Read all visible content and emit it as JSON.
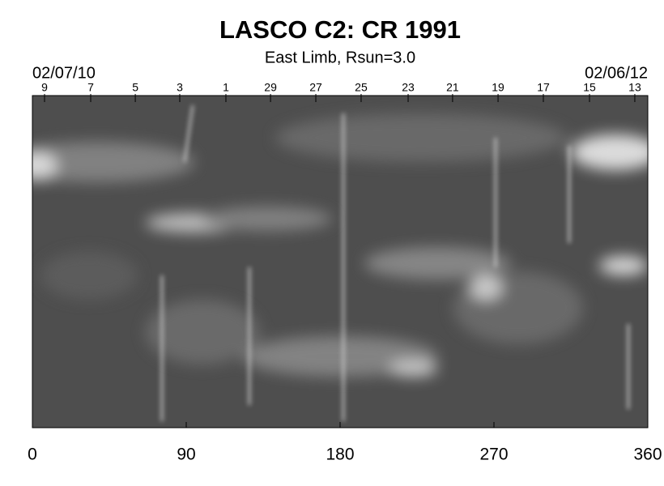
{
  "chart_data": {
    "type": "synoptic-map",
    "title": "LASCO C2: CR 1991",
    "subtitle": "East Limb, Rsun=3.0",
    "start_date": "02/07/10",
    "end_date": "02/06/12",
    "xlim": [
      0,
      360
    ],
    "xticks": [
      0,
      90,
      180,
      270,
      360
    ],
    "x2ticks": [
      {
        "value": 7.1,
        "label": "9"
      },
      {
        "value": 34.1,
        "label": "7"
      },
      {
        "value": 60.2,
        "label": "5"
      },
      {
        "value": 86.2,
        "label": "3"
      },
      {
        "value": 113.2,
        "label": "1"
      },
      {
        "value": 139.3,
        "label": "29"
      },
      {
        "value": 165.8,
        "label": "27"
      },
      {
        "value": 192.3,
        "label": "25"
      },
      {
        "value": 219.8,
        "label": "23"
      },
      {
        "value": 245.8,
        "label": "21"
      },
      {
        "value": 272.4,
        "label": "19"
      },
      {
        "value": 298.9,
        "label": "17"
      },
      {
        "value": 325.9,
        "label": "15"
      },
      {
        "value": 352.4,
        "label": "13"
      }
    ]
  }
}
